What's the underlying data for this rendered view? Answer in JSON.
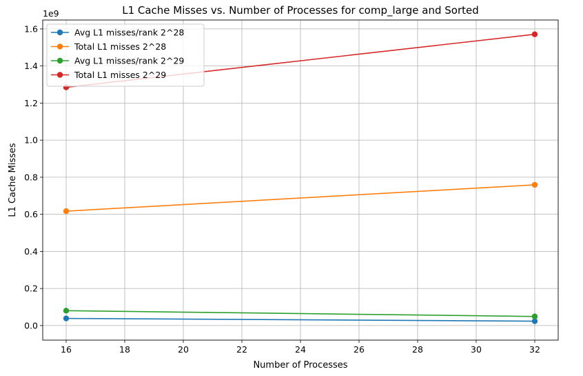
{
  "chart_data": {
    "type": "line",
    "title": "L1 Cache Misses vs. Number of Processes for comp_large and Sorted",
    "xlabel": "Number of Processes",
    "ylabel": "L1 Cache Misses",
    "y_offset_label": "1e9",
    "y_scale": 1000000000,
    "xlim": [
      15.2,
      32.8
    ],
    "ylim": [
      -0.0785,
      1.648
    ],
    "x_ticks": [
      16,
      18,
      20,
      22,
      24,
      26,
      28,
      30,
      32
    ],
    "y_ticks": [
      0.0,
      0.2,
      0.4,
      0.6,
      0.8,
      1.0,
      1.2,
      1.4,
      1.6
    ],
    "y_tick_labels": [
      "0.0",
      "0.2",
      "0.4",
      "0.6",
      "0.8",
      "1.0",
      "1.2",
      "1.4",
      "1.6"
    ],
    "grid": true,
    "legend_position": "top-left",
    "x": [
      16,
      32
    ],
    "series": [
      {
        "name": "Avg L1 misses/rank 2^28",
        "color": "#1f77b4",
        "values": [
          0.0385,
          0.0237
        ]
      },
      {
        "name": "Total L1 misses 2^28",
        "color": "#ff7f0e",
        "values": [
          0.617,
          0.759
        ]
      },
      {
        "name": "Avg L1 misses/rank 2^29",
        "color": "#2ca02c",
        "values": [
          0.0803,
          0.0491
        ]
      },
      {
        "name": "Total L1 misses 2^29",
        "color": "#d62728",
        "values": [
          1.285,
          1.571
        ]
      }
    ]
  }
}
